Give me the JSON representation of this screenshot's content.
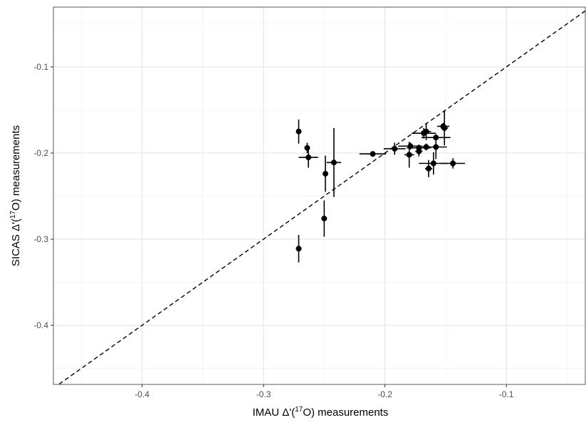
{
  "chart_data": {
    "type": "scatter",
    "xlabel": [
      "IMAU Δ'(",
      "17",
      "O) measurements"
    ],
    "ylabel": [
      "SICAS Δ'(",
      "17",
      "O) measurements"
    ],
    "x": [
      -0.271,
      -0.264,
      -0.263,
      -0.249,
      -0.242,
      -0.25,
      -0.271,
      -0.21,
      -0.192,
      -0.18,
      -0.179,
      -0.172,
      -0.172,
      -0.168,
      -0.166,
      -0.166,
      -0.164,
      -0.16,
      -0.158,
      -0.158,
      -0.151,
      -0.152,
      -0.144
    ],
    "y": [
      -0.175,
      -0.194,
      -0.205,
      -0.224,
      -0.211,
      -0.276,
      -0.311,
      -0.201,
      -0.195,
      -0.202,
      -0.192,
      -0.194,
      -0.198,
      -0.177,
      -0.175,
      -0.193,
      -0.218,
      -0.212,
      -0.182,
      -0.193,
      -0.171,
      -0.169,
      -0.212
    ],
    "xerr": [
      0.002,
      0.002,
      0.008,
      0.002,
      0.006,
      0.002,
      0.002,
      0.011,
      0.009,
      0.004,
      0.01,
      0.01,
      0.003,
      0.01,
      0.004,
      0.003,
      0.003,
      0.012,
      0.012,
      0.009,
      0.003,
      0.005,
      0.01
    ],
    "yerr": [
      0.014,
      0.006,
      0.012,
      0.021,
      0.04,
      0.021,
      0.016,
      0.003,
      0.007,
      0.015,
      0.004,
      0.004,
      0.006,
      0.006,
      0.01,
      0.004,
      0.01,
      0.013,
      0.004,
      0.014,
      0.02,
      0.004,
      0.006
    ],
    "color": "#000000",
    "xlim": [
      -0.473,
      -0.035
    ],
    "ylim": [
      -0.4686,
      -0.0306
    ],
    "xticks": [
      -0.4,
      -0.3,
      -0.2,
      -0.1
    ],
    "yticks": [
      -0.1,
      -0.2,
      -0.3,
      -0.4
    ],
    "xminor": [
      -0.45,
      -0.35,
      -0.25,
      -0.15,
      -0.05
    ],
    "yminor": [
      -0.05,
      -0.15,
      -0.25,
      -0.35,
      -0.45
    ],
    "grid": true,
    "reference_line": {
      "slope": 1,
      "intercept": 0,
      "style": "dashed"
    }
  }
}
